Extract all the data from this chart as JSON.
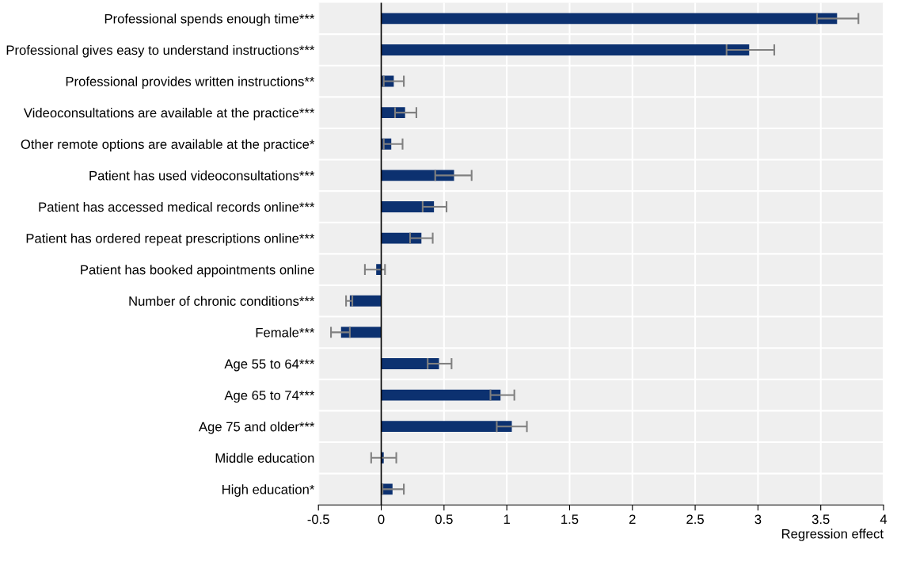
{
  "chart_data": {
    "type": "bar",
    "orientation": "horizontal",
    "xlabel": "Regression effect",
    "categories": [
      "Professional spends enough time***",
      "Professional gives easy to understand instructions***",
      "Professional provides written instructions**",
      "Videoconsultations are available at the practice***",
      "Other remote options are available at the practice*",
      "Patient has used videoconsultations***",
      "Patient has accessed medical records online***",
      "Patient has ordered repeat prescriptions online***",
      "Patient has booked appointments online",
      "Number of chronic conditions***",
      "Female***",
      "Age 55 to 64***",
      "Age 65 to 74***",
      "Age 75 and older***",
      "Middle education",
      "High education*"
    ],
    "values": [
      3.63,
      2.93,
      0.1,
      0.19,
      0.08,
      0.58,
      0.42,
      0.32,
      -0.04,
      -0.25,
      -0.32,
      0.46,
      0.95,
      1.04,
      0.02,
      0.09
    ],
    "errors": [
      [
        3.47,
        3.8
      ],
      [
        2.75,
        3.13
      ],
      [
        0.02,
        0.18
      ],
      [
        0.11,
        0.28
      ],
      [
        0.02,
        0.17
      ],
      [
        0.43,
        0.72
      ],
      [
        0.33,
        0.52
      ],
      [
        0.23,
        0.41
      ],
      [
        -0.13,
        0.03
      ],
      [
        -0.28,
        -0.23
      ],
      [
        -0.4,
        -0.25
      ],
      [
        0.37,
        0.56
      ],
      [
        0.87,
        1.06
      ],
      [
        0.92,
        1.16
      ],
      [
        -0.08,
        0.12
      ],
      [
        0.01,
        0.18
      ]
    ],
    "color": "#0c3170",
    "xlim": [
      -0.5,
      4
    ],
    "xticks": [
      -0.5,
      0,
      0.5,
      1,
      1.5,
      2,
      2.5,
      3,
      3.5,
      4
    ],
    "grid": true
  }
}
